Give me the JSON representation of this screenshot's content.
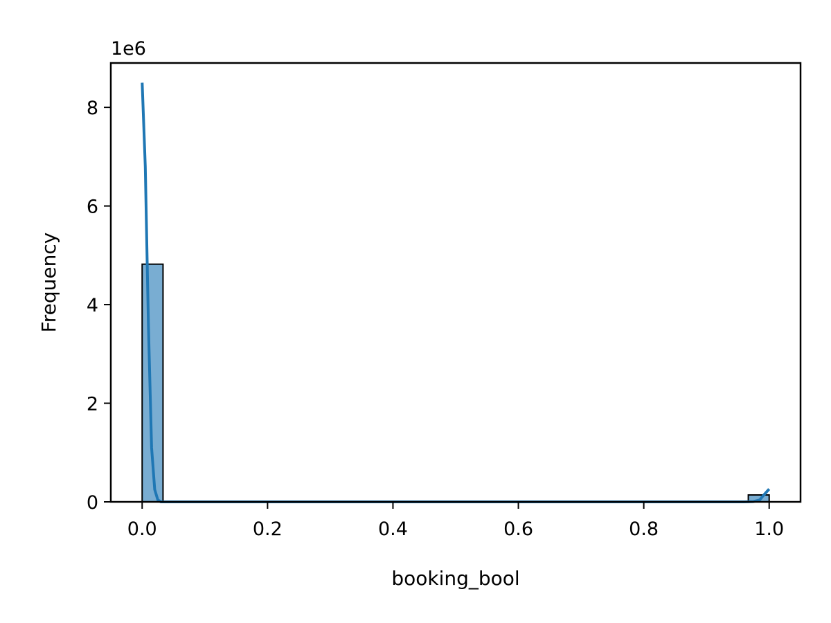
{
  "chart_data": {
    "type": "bar",
    "title": "",
    "xlabel": "booking_bool",
    "ylabel": "Frequency",
    "y_scale_label": "1e6",
    "y_scale_factor": 1000000,
    "xlim": [
      -0.05,
      1.05
    ],
    "ylim": [
      0,
      8.9
    ],
    "x_ticks": [
      0.0,
      0.2,
      0.4,
      0.6,
      0.8,
      1.0
    ],
    "x_tick_labels": [
      "0.0",
      "0.2",
      "0.4",
      "0.6",
      "0.8",
      "1.0"
    ],
    "y_ticks": [
      0,
      2,
      4,
      6,
      8
    ],
    "y_tick_labels": [
      "0",
      "2",
      "4",
      "6",
      "8"
    ],
    "grid": false,
    "legend": "none",
    "colors": {
      "bar_fill": "#1f77b4",
      "bar_fill_opacity": 0.6,
      "bar_edge": "#000000",
      "kde_line": "#1f77b4"
    },
    "series": [
      {
        "kind": "histogram",
        "bins": [
          {
            "x0": 0.0,
            "x1": 0.0333,
            "count": 4.82
          },
          {
            "x0": 0.9667,
            "x1": 1.0,
            "count": 0.14
          }
        ]
      },
      {
        "kind": "kde",
        "x": [
          0.0,
          0.005,
          0.01,
          0.015,
          0.02,
          0.025,
          0.03,
          0.04,
          0.2,
          0.4,
          0.6,
          0.8,
          0.96,
          0.975,
          0.985,
          0.99,
          0.995,
          1.0
        ],
        "y": [
          8.5,
          6.8,
          3.6,
          1.1,
          0.25,
          0.04,
          0.0,
          0.0,
          0.0,
          0.0,
          0.0,
          0.0,
          0.0,
          0.005,
          0.04,
          0.12,
          0.19,
          0.26
        ]
      }
    ]
  }
}
